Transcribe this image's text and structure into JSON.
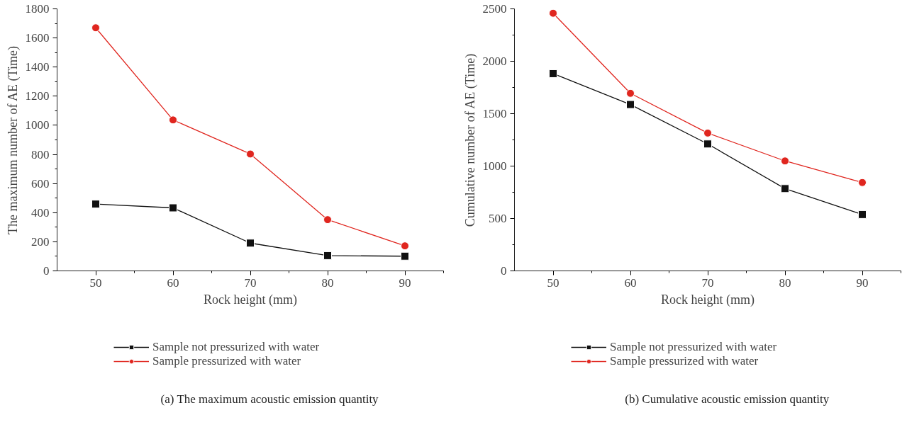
{
  "chart_data": [
    {
      "type": "line",
      "title": "(a) The maximum acoustic emission quantity",
      "xlabel": "Rock height (mm)",
      "ylabel": "The maximum number of AE (Time)",
      "x": [
        50,
        60,
        70,
        80,
        90
      ],
      "xlim": [
        45,
        95
      ],
      "xticks": [
        50,
        60,
        70,
        80,
        90
      ],
      "ylim": [
        0,
        1800
      ],
      "yticks": [
        0,
        200,
        400,
        600,
        800,
        1000,
        1200,
        1400,
        1600,
        1800
      ],
      "grid": false,
      "legend": "bottom",
      "series": [
        {
          "name": "Sample not pressurized with water",
          "color": "#111111",
          "marker": "square",
          "values": [
            459,
            433,
            191,
            105,
            101
          ]
        },
        {
          "name": "Sample pressurized with water",
          "color": "#e0261f",
          "marker": "circle",
          "values": [
            1670,
            1037,
            803,
            352,
            172
          ]
        }
      ]
    },
    {
      "type": "line",
      "title": "(b) Cumulative acoustic emission quantity",
      "xlabel": "Rock height (mm)",
      "ylabel": "Cumulative number of AE (Time)",
      "x": [
        50,
        60,
        70,
        80,
        90
      ],
      "xlim": [
        45,
        95
      ],
      "xticks": [
        50,
        60,
        70,
        80,
        90
      ],
      "ylim": [
        0,
        2500
      ],
      "yticks": [
        0,
        500,
        1000,
        1500,
        2000,
        2500
      ],
      "grid": false,
      "legend": "bottom",
      "series": [
        {
          "name": "Sample not pressurized with water",
          "color": "#111111",
          "marker": "square",
          "values": [
            1882,
            1587,
            1211,
            785,
            538
          ]
        },
        {
          "name": "Sample pressurized with water",
          "color": "#e0261f",
          "marker": "circle",
          "values": [
            2458,
            1694,
            1315,
            1049,
            843
          ]
        }
      ]
    }
  ]
}
